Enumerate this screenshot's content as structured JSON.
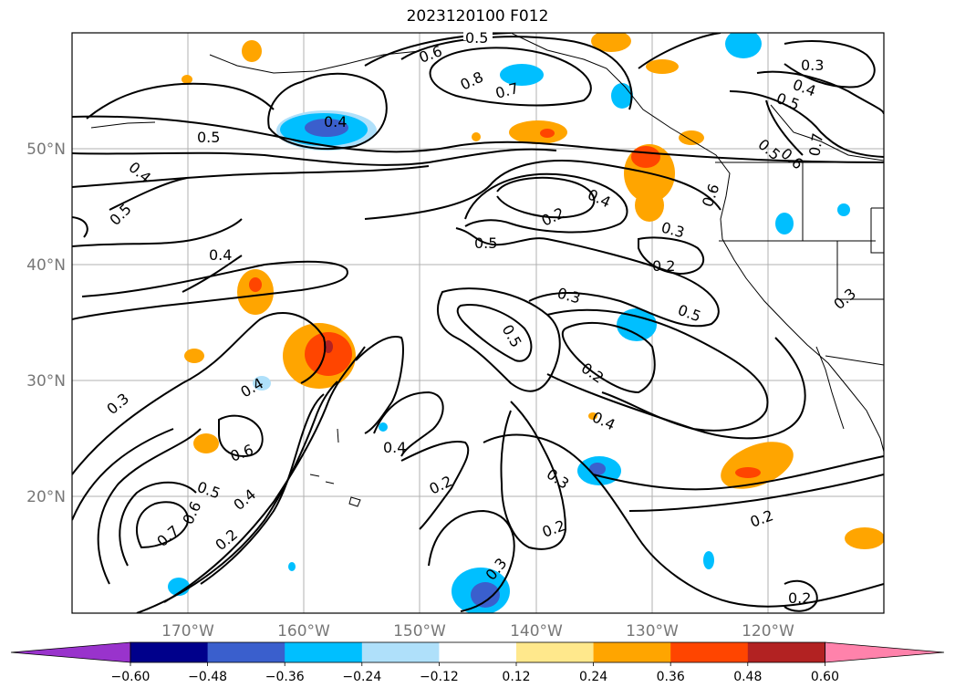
{
  "title": "2023120100 F012",
  "lat_labels": [
    "50°N",
    "40°N",
    "30°N",
    "20°N"
  ],
  "lon_labels": [
    "170°W",
    "160°W",
    "150°W",
    "140°W",
    "130°W",
    "120°W"
  ],
  "colorbar": {
    "colors": [
      "#9933cc",
      "#00008b",
      "#3a5fcd",
      "#00bfff",
      "#afe0fa",
      "#ffffff",
      "#ffe88c",
      "#ffa500",
      "#ff4500",
      "#b22222",
      "#ff82ab"
    ],
    "tick_labels": [
      "−0.60",
      "−0.48",
      "−0.36",
      "−0.24",
      "−0.12",
      "0.12",
      "0.24",
      "0.36",
      "0.48",
      "0.60"
    ]
  },
  "contour_labels": [
    "0.5",
    "0.6",
    "0.8",
    "0.7",
    "0.4",
    "0.3",
    "0.4",
    "0.5",
    "0.5",
    "0.6",
    "0.7",
    "0.5",
    "0.4",
    "0.5",
    "0.4",
    "0.2",
    "0.6",
    "0.3",
    "0.5",
    "0.2",
    "0.4",
    "0.3",
    "0.5",
    "0.2",
    "0.4",
    "0.3",
    "0.5",
    "0.4",
    "0.6",
    "0.5",
    "0.7",
    "0.6",
    "0.4",
    "0.2",
    "0.2",
    "0.3",
    "0.2",
    "0.3",
    "0.2",
    "0.2",
    "0.3"
  ]
}
